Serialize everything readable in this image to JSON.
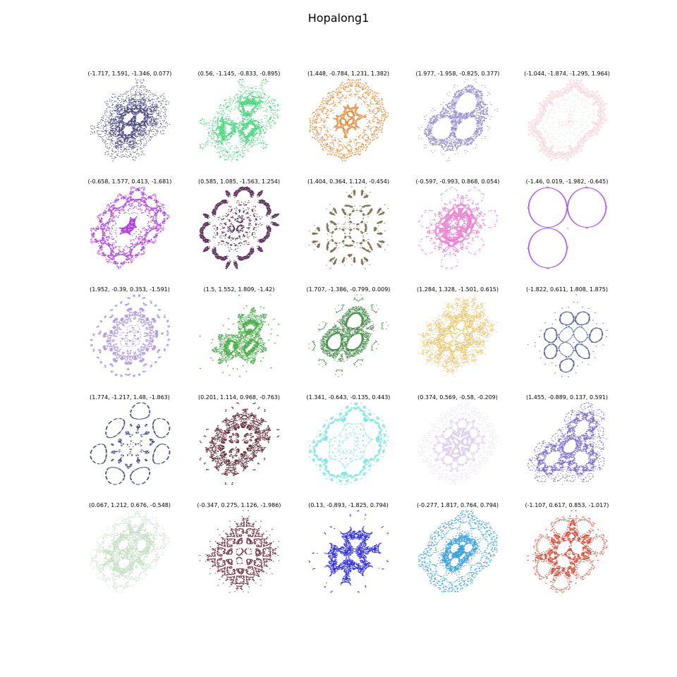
{
  "chart_data": {
    "type": "scatter",
    "title": "Hopalong1",
    "grid": false,
    "axes_visible": false,
    "panels": [
      {
        "title": "(-1.717, 1.591, -1.346, 0.077)",
        "params": [
          -1.717,
          1.591,
          -1.346,
          0.077
        ],
        "color": "#2b2a6e"
      },
      {
        "title": "(0.56, -1.145, -0.833, -0.895)",
        "params": [
          0.56,
          -1.145,
          -0.833,
          -0.895
        ],
        "color": "#2ecc6a"
      },
      {
        "title": "(1.448, -0.784, 1.231, 1.382)",
        "params": [
          1.448,
          -0.784,
          1.231,
          1.382
        ],
        "color": "#e67e22"
      },
      {
        "title": "(1.977, -1.958, -0.825, 0.377)",
        "params": [
          1.977,
          -1.958,
          -0.825,
          0.377
        ],
        "color": "#8a7fc6"
      },
      {
        "title": "(-1.044, -1.874, -1.295, 1.964)",
        "params": [
          -1.044,
          -1.874,
          -1.295,
          1.964
        ],
        "color": "#f6cfd3"
      },
      {
        "title": "(-0.658, 1.577, 0.413, -1.681)",
        "params": [
          -0.658,
          1.577,
          0.413,
          -1.681
        ],
        "color": "#a020d8"
      },
      {
        "title": "(0.585, 1.085, -1.563, 1.254)",
        "params": [
          0.585,
          1.085,
          -1.563,
          1.254
        ],
        "color": "#3a0a3a"
      },
      {
        "title": "(1.404, 0.364, 1.124, -0.454)",
        "params": [
          1.404,
          0.364,
          1.124,
          -0.454
        ],
        "color": "#6b5a35"
      },
      {
        "title": "(-0.597, -0.993, 0.868, 0.054)",
        "params": [
          -0.597,
          -0.993,
          0.868,
          0.054
        ],
        "color": "#e96ac8"
      },
      {
        "title": "(-1.46, 0.019, -1.982, -0.645)",
        "params": [
          -1.46,
          0.019,
          -1.982,
          -0.645
        ],
        "color": "#a040f0"
      },
      {
        "title": "(1.952, -0.39, 0.353, -1.591)",
        "params": [
          1.952,
          -0.39,
          0.353,
          -1.591
        ],
        "color": "#a58ad8"
      },
      {
        "title": "(1.5, 1.552, 1.809, -1.42)",
        "params": [
          1.5,
          1.552,
          1.809,
          -1.42
        ],
        "color": "#2fa02f"
      },
      {
        "title": "(1.707, -1.386, -0.799, 0.009)",
        "params": [
          1.707,
          -1.386,
          -0.799,
          0.009
        ],
        "color": "#2e7d32"
      },
      {
        "title": "(1.284, 1.328, -1.501, 0.615)",
        "params": [
          1.284,
          1.328,
          -1.501,
          0.615
        ],
        "color": "#e6b84a"
      },
      {
        "title": "(-1.822, 0.611, 1.808, 1.875)",
        "params": [
          -1.822,
          0.611,
          1.808,
          1.875
        ],
        "color": "#3b4a9a"
      },
      {
        "title": "(1.774, -1.217, 1.48, -1.863)",
        "params": [
          1.774,
          -1.217,
          1.48,
          -1.863
        ],
        "color": "#1c2a6a"
      },
      {
        "title": "(0.201, 1.114, 0.968, -0.763)",
        "params": [
          0.201,
          1.114,
          0.968,
          -0.763
        ],
        "color": "#4a0a1a"
      },
      {
        "title": "(1.341, -0.643, -0.135, 0.443)",
        "params": [
          1.341,
          -0.643,
          -0.135,
          0.443
        ],
        "color": "#6fe3dc"
      },
      {
        "title": "(0.374, 0.569, -0.58, -0.209)",
        "params": [
          0.374,
          0.569,
          -0.58,
          -0.209
        ],
        "color": "#d9c8ec"
      },
      {
        "title": "(1.455, -0.889, 0.137, 0.591)",
        "params": [
          1.455,
          -0.889,
          0.137,
          0.591
        ],
        "color": "#6a58c8"
      },
      {
        "title": "(0.067, 1.212, 0.676, -0.548)",
        "params": [
          0.067,
          1.212,
          0.676,
          -0.548
        ],
        "color": "#b8d8b8"
      },
      {
        "title": "(-0.347, 0.275, 1.126, -1.986)",
        "params": [
          -0.347,
          0.275,
          1.126,
          -1.986
        ],
        "color": "#5a0f1e"
      },
      {
        "title": "(0.13, -0.893, -1.825, 0.794)",
        "params": [
          0.13,
          -0.893,
          -1.825,
          0.794
        ],
        "color": "#1010e0"
      },
      {
        "title": "(-0.277, 1.817, 0.764, 0.794)",
        "params": [
          -0.277,
          1.817,
          0.764,
          0.794
        ],
        "color": "#1a8fd8"
      },
      {
        "title": "(-1.107, 0.617, 0.853, -1.017)",
        "params": [
          -1.107,
          0.617,
          0.853,
          -1.017
        ],
        "color": "#d0301a"
      }
    ]
  }
}
